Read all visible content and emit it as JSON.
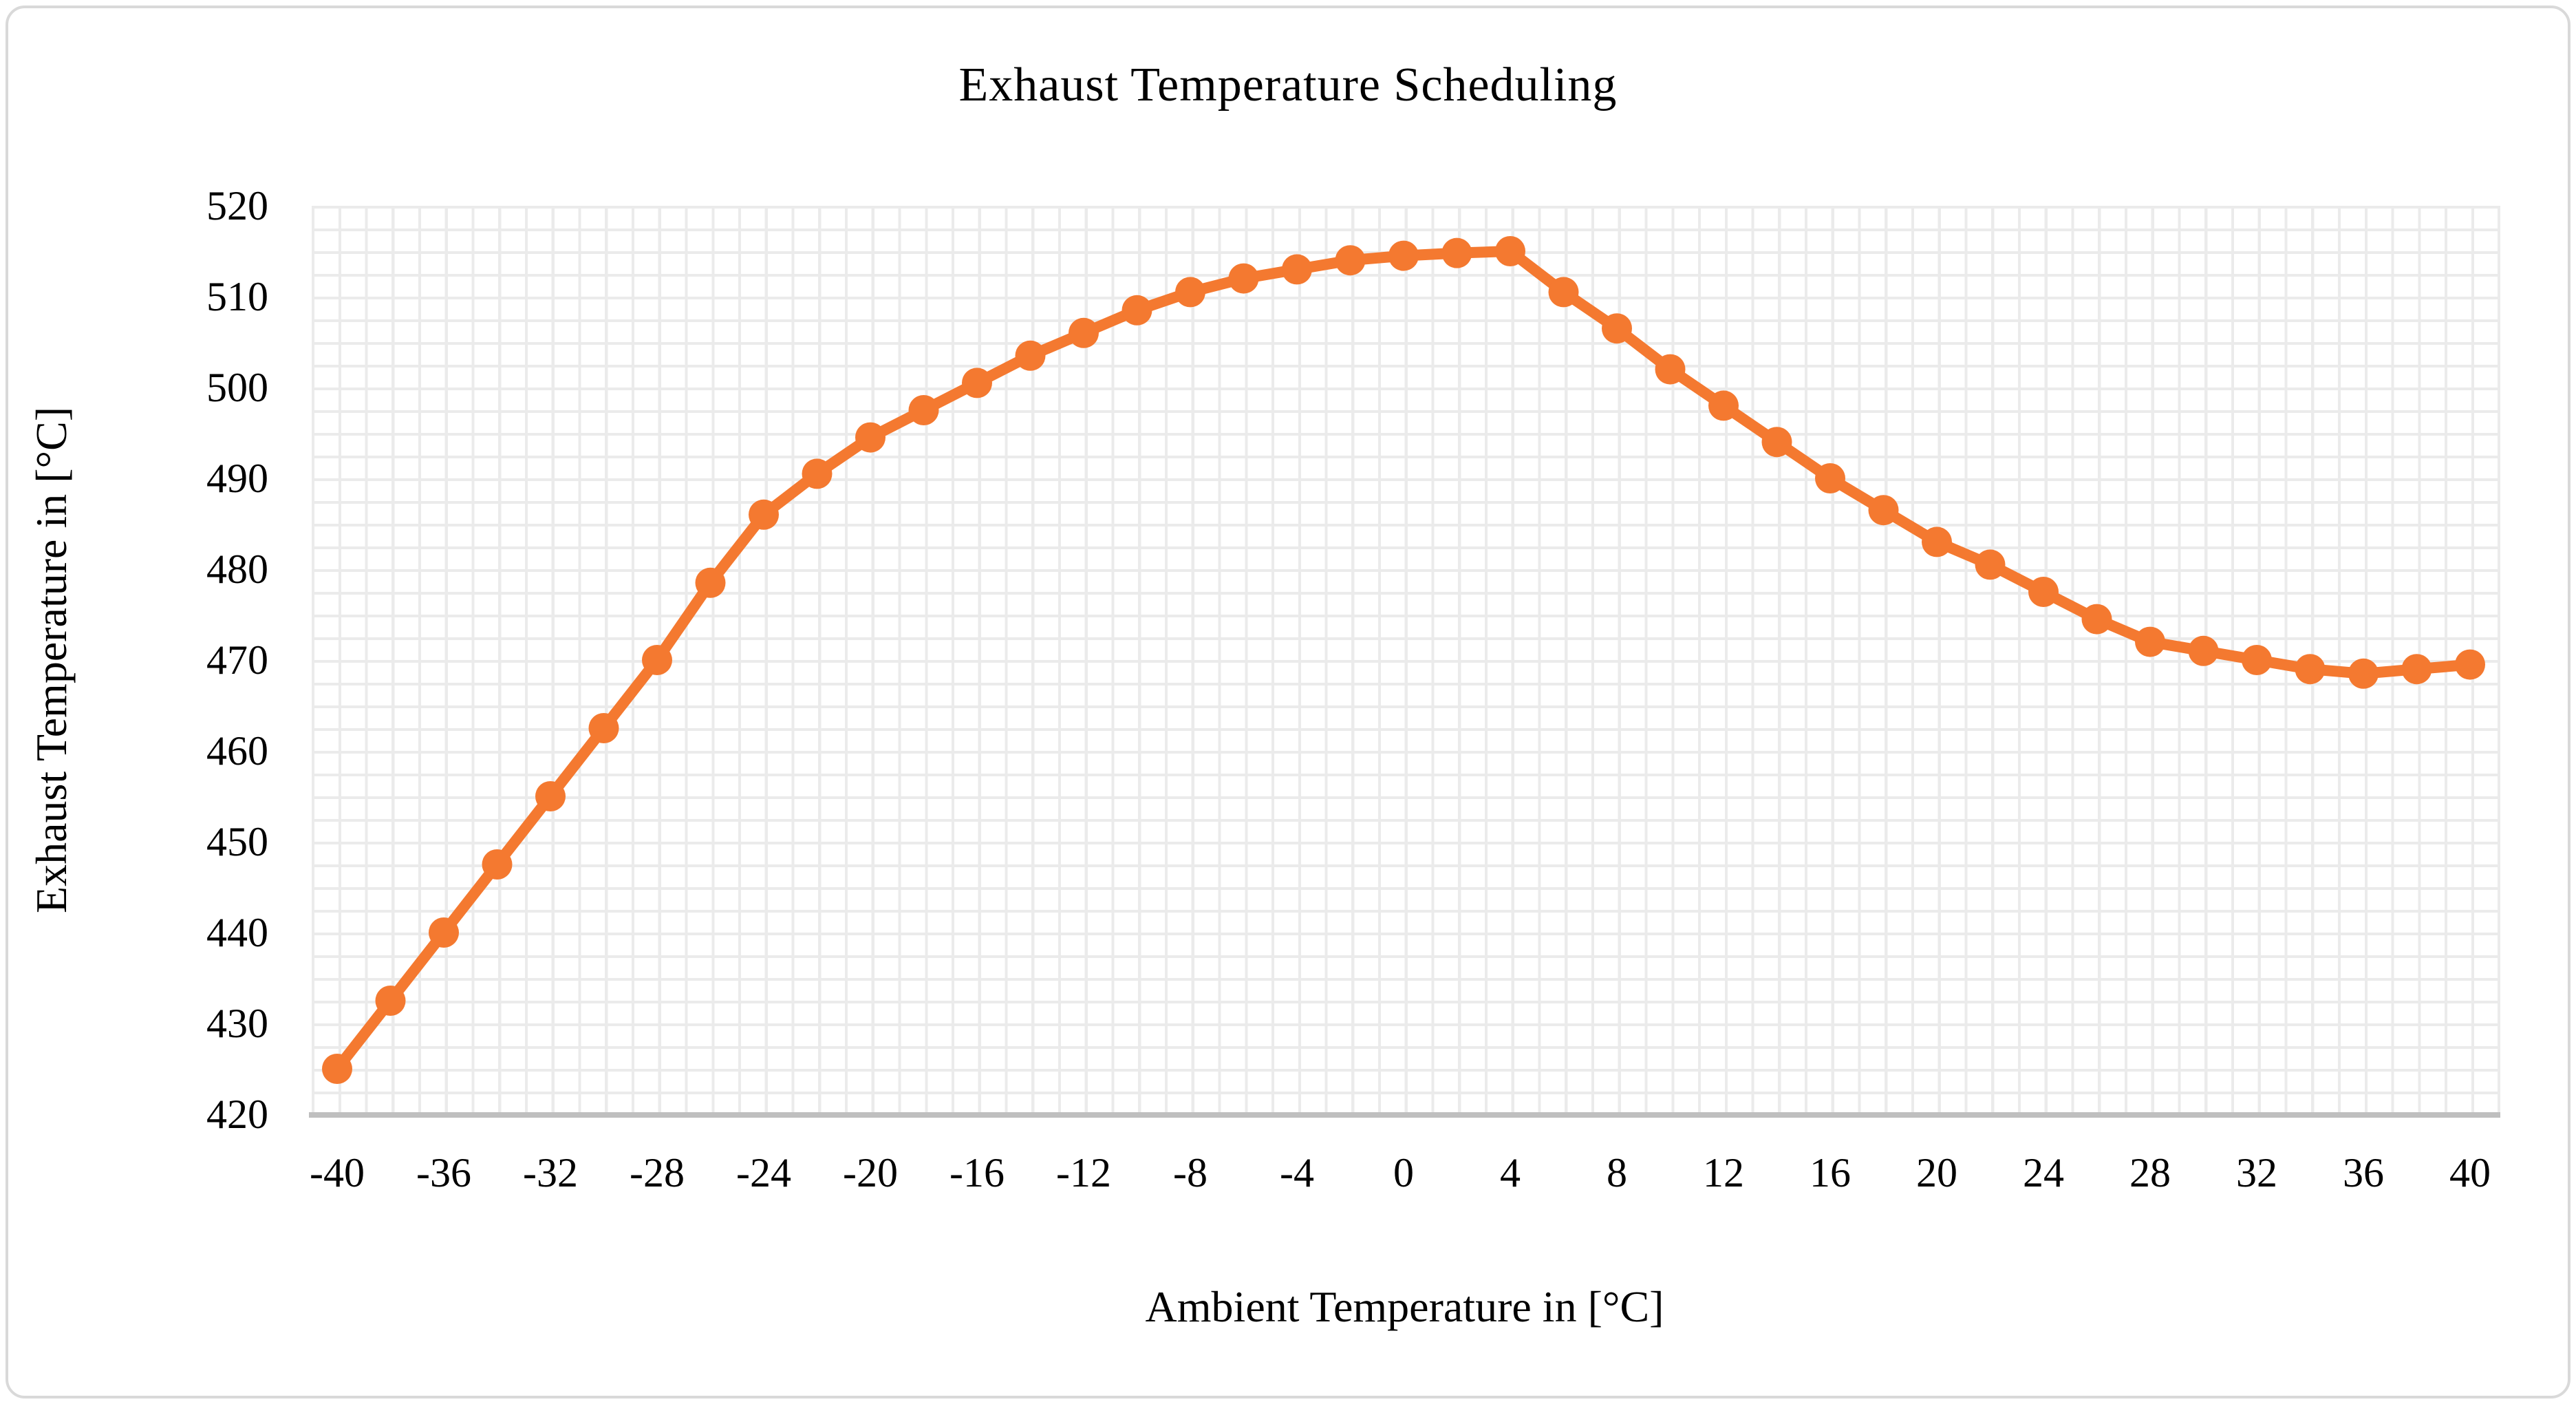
{
  "chart": {
    "title": "Exhaust Temperature Scheduling",
    "x_axis_title": "Ambient Temperature in [°C]",
    "y_axis_title": "Exhaust Temperature in [°C]",
    "series_color": "#F47930",
    "grid_color": "#EBEBEB",
    "axis_line_color": "#BFBFBF",
    "border_color": "#D9D9D9"
  },
  "chart_data": {
    "type": "line",
    "title": "Exhaust Temperature Scheduling",
    "xlabel": "Ambient Temperature in [°C]",
    "ylabel": "Exhaust Temperature in [°C]",
    "xlim": [
      -41,
      41
    ],
    "ylim": [
      420,
      520
    ],
    "x_tick_step": 4,
    "y_tick_step": 10,
    "grid": "on",
    "legend": "none",
    "marker": "circle",
    "x_ticks": [
      -40,
      -36,
      -32,
      -28,
      -24,
      -20,
      -16,
      -12,
      -8,
      -4,
      0,
      4,
      8,
      12,
      16,
      20,
      24,
      28,
      32,
      36,
      40
    ],
    "y_ticks": [
      420,
      430,
      440,
      450,
      460,
      470,
      480,
      490,
      500,
      510,
      520
    ],
    "x": [
      -40,
      -38,
      -36,
      -34,
      -32,
      -30,
      -28,
      -26,
      -24,
      -22,
      -20,
      -18,
      -16,
      -14,
      -12,
      -10,
      -8,
      -6,
      -4,
      -2,
      0,
      2,
      4,
      6,
      8,
      10,
      12,
      14,
      16,
      18,
      20,
      22,
      24,
      26,
      28,
      30,
      32,
      34,
      36,
      38,
      40
    ],
    "series": [
      {
        "name": "Exhaust Temperature",
        "values": [
          425,
          432.5,
          440,
          447.5,
          455,
          462.5,
          470,
          478.5,
          486,
          490.5,
          494.5,
          497.5,
          500.5,
          503.5,
          506,
          508.5,
          510.5,
          512,
          513,
          514,
          514.5,
          514.8,
          515,
          510.5,
          506.5,
          502,
          498,
          494,
          490,
          486.5,
          483,
          480.5,
          477.5,
          474.5,
          472,
          471,
          470,
          469,
          468.5,
          469,
          469.5
        ]
      }
    ]
  }
}
